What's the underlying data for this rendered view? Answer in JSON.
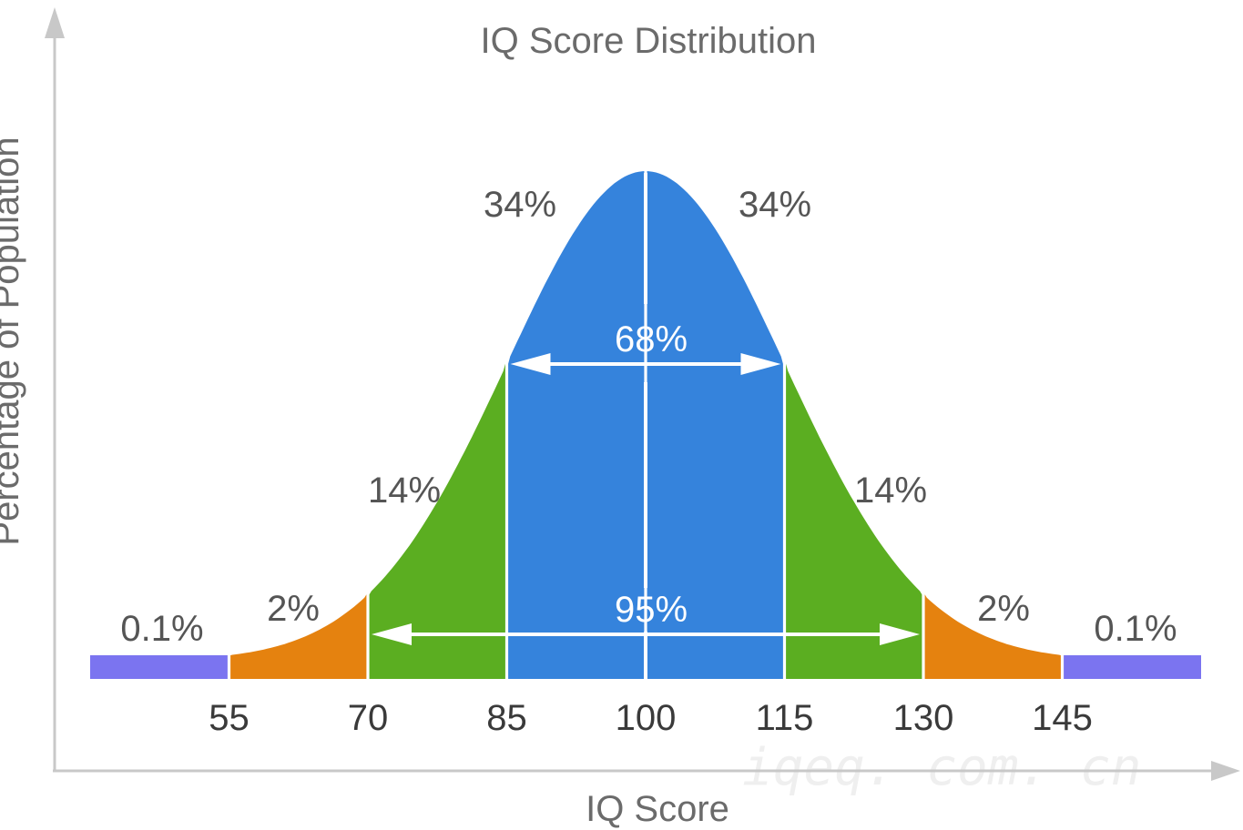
{
  "chart_data": {
    "type": "area",
    "title": "IQ Score Distribution",
    "xlabel": "IQ Score",
    "ylabel": "Percentage of Population",
    "mean": 100,
    "sd": 15,
    "x_ticks": [
      "55",
      "70",
      "85",
      "100",
      "115",
      "130",
      "145"
    ],
    "segments": [
      {
        "from": 40,
        "to": 55,
        "label": "0.1%",
        "color": "#7b74f0"
      },
      {
        "from": 55,
        "to": 70,
        "label": "2%",
        "color": "#e5820f"
      },
      {
        "from": 70,
        "to": 85,
        "label": "14%",
        "color": "#5bae21"
      },
      {
        "from": 85,
        "to": 100,
        "label": "34%",
        "color": "#3583dc"
      },
      {
        "from": 100,
        "to": 115,
        "label": "34%",
        "color": "#3583dc"
      },
      {
        "from": 115,
        "to": 130,
        "label": "14%",
        "color": "#5bae21"
      },
      {
        "from": 130,
        "to": 145,
        "label": "2%",
        "color": "#e5820f"
      },
      {
        "from": 145,
        "to": 160,
        "label": "0.1%",
        "color": "#7b74f0"
      }
    ],
    "ranges": [
      {
        "from": 85,
        "to": 115,
        "label": "68%"
      },
      {
        "from": 70,
        "to": 130,
        "label": "95%"
      }
    ]
  },
  "watermark": "iqeq. com. cn"
}
